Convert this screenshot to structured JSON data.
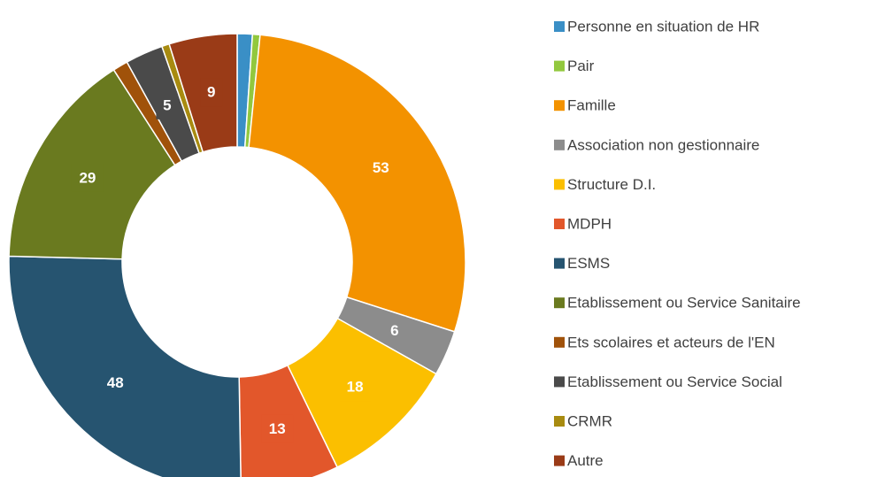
{
  "chart_data": {
    "type": "donut",
    "categories": [
      "Personne en situation de HR",
      "Pair",
      "Famille",
      "Association non gestionnaire",
      "Structure D.I.",
      "MDPH",
      "ESMS",
      "Etablissement ou Service Sanitaire",
      "Ets scolaires et acteurs de l'EN",
      "Etablissement ou Service Social",
      "CRMR",
      "Autre"
    ],
    "values": [
      2,
      1,
      53,
      6,
      18,
      13,
      48,
      29,
      2,
      5,
      1,
      9
    ],
    "value_labels": [
      null,
      null,
      "53",
      "6",
      "18",
      "13",
      "48",
      "29",
      null,
      "5",
      null,
      "9"
    ],
    "colors": [
      "#3a8fc6",
      "#92c83e",
      "#f39200",
      "#8c8c8c",
      "#fbbf00",
      "#e2572b",
      "#265470",
      "#6a7a1f",
      "#a0520a",
      "#4a4a4a",
      "#a88b10",
      "#9a3b17"
    ],
    "legend": "right"
  }
}
